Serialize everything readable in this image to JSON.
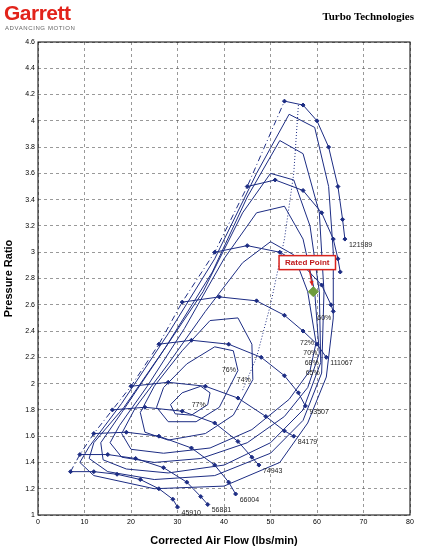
{
  "chart_data": {
    "type": "line",
    "header": {
      "logo": "Garrett",
      "tagline": "ADVANCING MOTION"
    },
    "title": "Turbo Technologies",
    "x_label": "Corrected Air Flow (lbs/min)",
    "y_label": "Pressure Ratio",
    "xlim": [
      0,
      80
    ],
    "xticks": [
      0,
      10,
      20,
      30,
      40,
      50,
      60,
      70,
      80
    ],
    "ylim": [
      1,
      4.6
    ],
    "yticks": [
      1,
      1.2,
      1.4,
      1.6,
      1.8,
      2,
      2.2,
      2.4,
      2.6,
      2.8,
      3,
      3.2,
      3.4,
      3.6,
      3.8,
      4,
      4.2,
      4.4,
      4.6
    ],
    "grid": true,
    "speed_lines": [
      {
        "name": "45910",
        "color": "#1c2c83",
        "marker": "diamond",
        "line_style": "solid",
        "x": [
          7,
          12,
          17,
          22,
          26,
          29,
          30
        ],
        "values": [
          1.33,
          1.33,
          1.31,
          1.27,
          1.2,
          1.12,
          1.06
        ]
      },
      {
        "name": "56881",
        "color": "#1c2c83",
        "marker": "diamond",
        "line_style": "solid",
        "x": [
          9,
          15,
          21,
          27,
          32,
          35,
          36.5
        ],
        "values": [
          1.46,
          1.46,
          1.43,
          1.36,
          1.25,
          1.14,
          1.08
        ]
      },
      {
        "name": "66004",
        "color": "#1c2c83",
        "marker": "diamond",
        "line_style": "solid",
        "x": [
          12,
          19,
          26,
          33,
          38,
          41,
          42.5
        ],
        "values": [
          1.62,
          1.63,
          1.6,
          1.51,
          1.38,
          1.25,
          1.16
        ]
      },
      {
        "name": "74943",
        "color": "#1c2c83",
        "marker": "diamond",
        "line_style": "solid",
        "x": [
          16,
          23,
          31,
          38,
          43,
          46,
          47.5
        ],
        "values": [
          1.8,
          1.82,
          1.79,
          1.7,
          1.56,
          1.44,
          1.38
        ]
      },
      {
        "name": "84179",
        "color": "#1c2c83",
        "marker": "diamond",
        "line_style": "solid",
        "x": [
          20,
          28,
          36,
          43,
          49,
          53,
          55
        ],
        "values": [
          1.98,
          2.01,
          1.98,
          1.89,
          1.75,
          1.64,
          1.6
        ]
      },
      {
        "name": "93507",
        "color": "#1c2c83",
        "marker": "diamond",
        "line_style": "solid",
        "x": [
          26,
          33,
          41,
          48,
          53,
          56,
          57.5
        ],
        "values": [
          2.3,
          2.33,
          2.3,
          2.2,
          2.06,
          1.93,
          1.83
        ]
      },
      {
        "name": "111067",
        "color": "#1c2c83",
        "marker": "diamond",
        "line_style": "solid",
        "x": [
          31,
          39,
          47,
          53,
          57,
          60,
          62
        ],
        "values": [
          2.62,
          2.66,
          2.63,
          2.52,
          2.4,
          2.3,
          2.2
        ]
      },
      {
        "name": null,
        "color": "#1c2c83",
        "marker": "diamond",
        "line_style": "solid",
        "x": [
          38,
          45,
          52,
          57,
          61,
          63,
          63.5
        ],
        "values": [
          3.0,
          3.05,
          3.0,
          2.9,
          2.75,
          2.6,
          2.55
        ]
      },
      {
        "name": null,
        "color": "#1c2c83",
        "marker": "diamond",
        "line_style": "solid",
        "x": [
          45,
          51,
          57,
          61,
          63.5,
          64.5,
          65
        ],
        "values": [
          3.5,
          3.55,
          3.47,
          3.3,
          3.1,
          2.95,
          2.85
        ]
      },
      {
        "name": "121989",
        "color": "#1c2c83",
        "marker": "diamond",
        "line_style": "solid",
        "x": [
          53,
          57,
          60,
          62.5,
          64.5,
          65.5,
          66
        ],
        "values": [
          4.15,
          4.12,
          4.0,
          3.8,
          3.5,
          3.25,
          3.1
        ]
      }
    ],
    "efficiency_contours": [
      {
        "name": "77%",
        "color": "#1c2c83",
        "marker": "none",
        "line_style": "solid",
        "x": [
          36.5,
          37,
          35,
          31,
          28.5,
          29.5,
          33,
          36.5
        ],
        "values": [
          1.84,
          1.93,
          1.98,
          1.93,
          1.84,
          1.77,
          1.76,
          1.84
        ]
      },
      {
        "name": "76%",
        "color": "#1c2c83",
        "marker": "none",
        "line_style": "solid",
        "x": [
          43,
          42,
          38,
          32,
          27,
          25.5,
          28,
          34,
          39,
          43
        ],
        "values": [
          2.1,
          2.25,
          2.28,
          2.15,
          1.97,
          1.82,
          1.71,
          1.71,
          1.82,
          2.1
        ]
      },
      {
        "name": "74%",
        "color": "#1c2c83",
        "marker": "none",
        "line_style": "solid",
        "x": [
          46.2,
          46,
          43,
          37,
          31,
          25,
          22,
          23,
          28,
          36,
          42,
          46.2
        ],
        "values": [
          2.03,
          2.3,
          2.5,
          2.48,
          2.25,
          1.98,
          1.78,
          1.63,
          1.57,
          1.62,
          1.76,
          2.03
        ]
      },
      {
        "name": "72%",
        "color": "#1c2c83",
        "marker": "none",
        "line_style": "solid",
        "x": [
          59.8,
          58,
          55,
          50,
          44,
          36,
          28,
          21,
          18,
          20,
          27,
          37,
          46,
          54,
          58.5,
          59.8
        ],
        "values": [
          2.31,
          2.7,
          2.98,
          3.08,
          2.92,
          2.55,
          2.15,
          1.82,
          1.62,
          1.5,
          1.47,
          1.51,
          1.65,
          1.88,
          2.1,
          2.31
        ]
      },
      {
        "name": "70%",
        "color": "#1c2c83",
        "marker": "none",
        "line_style": "solid",
        "x": [
          60.5,
          59.5,
          57,
          53,
          47,
          40,
          31.5,
          23.5,
          17.5,
          15.5,
          18,
          25,
          35,
          45,
          53,
          58,
          60.5
        ],
        "values": [
          2.23,
          2.7,
          3.1,
          3.35,
          3.3,
          2.95,
          2.42,
          1.98,
          1.68,
          1.55,
          1.44,
          1.4,
          1.43,
          1.55,
          1.75,
          1.97,
          2.23
        ]
      },
      {
        "name": "68%",
        "color": "#1c2c83",
        "marker": "none",
        "line_style": "solid",
        "x": [
          60.8,
          60.5,
          58.5,
          55,
          50,
          44,
          35.5,
          26,
          18,
          13.5,
          14,
          19,
          28,
          40,
          50,
          57,
          60.8
        ],
        "values": [
          2.16,
          2.7,
          3.2,
          3.55,
          3.6,
          3.3,
          2.7,
          2.2,
          1.78,
          1.55,
          1.42,
          1.35,
          1.32,
          1.38,
          1.55,
          1.8,
          2.16
        ]
      },
      {
        "name": "65%",
        "color": "#1c2c83",
        "marker": "none",
        "line_style": "solid",
        "x": [
          61,
          61.5,
          60.5,
          57,
          52,
          45,
          37.5,
          27.5,
          18.5,
          12,
          11,
          15,
          25,
          38,
          50,
          57,
          61
        ],
        "values": [
          2.08,
          2.7,
          3.3,
          3.75,
          3.85,
          3.42,
          2.85,
          2.28,
          1.82,
          1.55,
          1.43,
          1.33,
          1.27,
          1.3,
          1.47,
          1.72,
          2.08
        ]
      },
      {
        "name": "60%",
        "color": "#1c2c83",
        "marker": "none",
        "line_style": "solid",
        "x": [
          63.5,
          63.5,
          62.5,
          59.5,
          54,
          47,
          38,
          28,
          18,
          11,
          9,
          12,
          25,
          40,
          52,
          58,
          62,
          63.5
        ],
        "values": [
          2.5,
          3.0,
          3.5,
          3.95,
          4.05,
          3.6,
          2.95,
          2.38,
          1.85,
          1.52,
          1.4,
          1.3,
          1.2,
          1.22,
          1.4,
          1.7,
          2.05,
          2.5
        ]
      }
    ],
    "surge_line": {
      "name": null,
      "color": "#1c2c83",
      "marker": "none",
      "line_style": "dashdot",
      "x": [
        7,
        9,
        12,
        16,
        20,
        26,
        31,
        38,
        45,
        53
      ],
      "values": [
        1.33,
        1.46,
        1.62,
        1.8,
        1.98,
        2.3,
        2.62,
        3.0,
        3.5,
        4.15
      ]
    },
    "dotted_line": {
      "name": null,
      "color": "#1c2c83",
      "marker": "none",
      "line_style": "dotted",
      "x": [
        56,
        55,
        53,
        50,
        47,
        44
      ],
      "values": [
        4.12,
        3.6,
        3.1,
        2.6,
        2.2,
        1.95
      ]
    },
    "rated_point": {
      "name": "Rated Point",
      "type": "scatter",
      "color": "#6e9b3c",
      "marker": "diamond",
      "x": [
        59.2
      ],
      "values": [
        2.7
      ]
    }
  }
}
